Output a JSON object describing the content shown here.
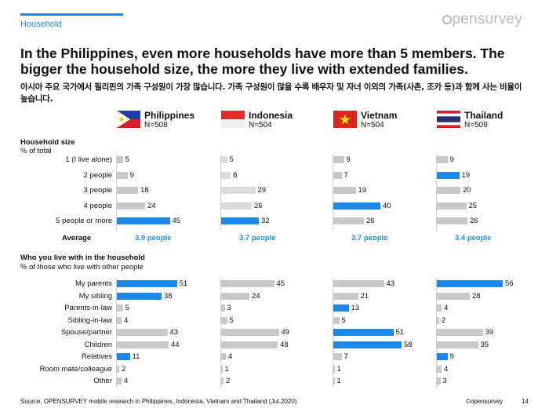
{
  "section": "Household",
  "logo": "pensurvey",
  "headline": "In the Philippines, even more households have more than 5 members. The bigger the household size, the more they live with extended families.",
  "subheadline": "아시아 주요 국가에서 필리핀의 가족 구성원이 가장 많습니다. 가족 구성원이 많을 수록 배우자 및 자녀 이외의 가족(사촌, 조카 등)과 함께 사는 비율이 높습니다.",
  "countries": [
    {
      "name": "Philippines",
      "n": "N=508"
    },
    {
      "name": "Indonesia",
      "n": "N=504"
    },
    {
      "name": "Vietnam",
      "n": "N=504"
    },
    {
      "name": "Thailand",
      "n": "N=509"
    }
  ],
  "colors": {
    "accent": "#1e88e5",
    "gray": "#c8c8c8",
    "light_gray": "#dadada"
  },
  "chart_data": [
    {
      "type": "bar",
      "orientation": "horizontal",
      "title": "Household size",
      "subtitle": "% of total",
      "categories": [
        "1 (I live alone)",
        "2 people",
        "3 people",
        "4 people",
        "5 people or more"
      ],
      "series": [
        {
          "name": "Philippines",
          "values": [
            5,
            9,
            18,
            24,
            45
          ],
          "highlight": [
            false,
            false,
            false,
            false,
            true
          ]
        },
        {
          "name": "Indonesia",
          "values": [
            5,
            8,
            29,
            26,
            32
          ],
          "highlight": [
            false,
            false,
            false,
            false,
            true
          ]
        },
        {
          "name": "Vietnam",
          "values": [
            9,
            7,
            19,
            40,
            26
          ],
          "highlight": [
            false,
            false,
            false,
            true,
            false
          ]
        },
        {
          "name": "Thailand",
          "values": [
            9,
            19,
            20,
            25,
            26
          ],
          "highlight": [
            false,
            true,
            false,
            false,
            false
          ]
        }
      ],
      "average_label": "Average",
      "averages": [
        "3.9 people",
        "3.7 people",
        "3.7 people",
        "3.4 people"
      ],
      "xlim": [
        0,
        60
      ]
    },
    {
      "type": "bar",
      "orientation": "horizontal",
      "title": "Who you live with in the household",
      "subtitle": "% of those who live with other people",
      "categories": [
        "My parents",
        "My sibling",
        "Parents-in-law",
        "Sibling-in-law",
        "Spouse/partner",
        "Children",
        "Relatives",
        "Room mate/colleague",
        "Other"
      ],
      "series": [
        {
          "name": "Philippines",
          "values": [
            51,
            38,
            5,
            4,
            43,
            44,
            11,
            2,
            4
          ],
          "highlight": [
            true,
            true,
            false,
            false,
            false,
            false,
            true,
            false,
            false
          ]
        },
        {
          "name": "Indonesia",
          "values": [
            45,
            24,
            3,
            5,
            49,
            48,
            4,
            1,
            2
          ],
          "highlight": [
            false,
            false,
            false,
            false,
            false,
            false,
            false,
            false,
            false
          ]
        },
        {
          "name": "Vietnam",
          "values": [
            43,
            21,
            13,
            5,
            51,
            58,
            7,
            1,
            1
          ],
          "highlight": [
            false,
            false,
            true,
            false,
            true,
            true,
            false,
            false,
            false
          ]
        },
        {
          "name": "Thailand",
          "values": [
            56,
            28,
            4,
            2,
            39,
            35,
            9,
            4,
            3
          ],
          "highlight": [
            true,
            false,
            false,
            false,
            false,
            false,
            true,
            false,
            false
          ]
        }
      ],
      "xlim": [
        0,
        60
      ]
    }
  ],
  "footer": {
    "source": "Source: OPENSURVEY mobile research in Philippines, Indonesia, Vietnam and Thailand (Jul.2020)",
    "logo": "©opensurvey",
    "page": "14"
  }
}
